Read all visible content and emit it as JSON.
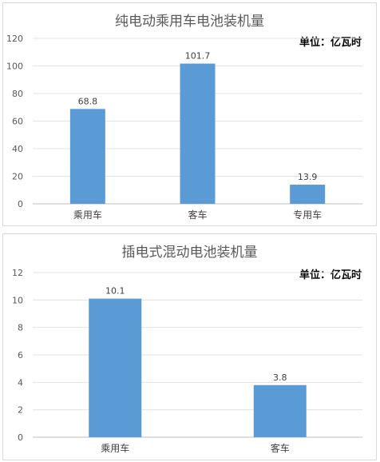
{
  "chart_data": [
    {
      "type": "bar",
      "title": "纯电动乘用车电池装机量",
      "unit": "单位：亿瓦时",
      "categories": [
        "乘用车",
        "客车",
        "专用车"
      ],
      "values": [
        68.8,
        101.7,
        13.9
      ],
      "value_labels": [
        "68.8",
        "101.7",
        "13.9"
      ],
      "ylim": [
        0,
        120
      ],
      "yticks": [
        0,
        20,
        40,
        60,
        80,
        100,
        120
      ],
      "grid": true,
      "bar_color": "#5b9bd5"
    },
    {
      "type": "bar",
      "title": "插电式混动电池装机量",
      "unit": "单位：亿瓦时",
      "categories": [
        "乘用车",
        "客车"
      ],
      "values": [
        10.1,
        3.8
      ],
      "value_labels": [
        "10.1",
        "3.8"
      ],
      "ylim": [
        0,
        12
      ],
      "yticks": [
        0,
        2,
        4,
        6,
        8,
        10,
        12
      ],
      "grid": true,
      "bar_color": "#5b9bd5"
    }
  ]
}
